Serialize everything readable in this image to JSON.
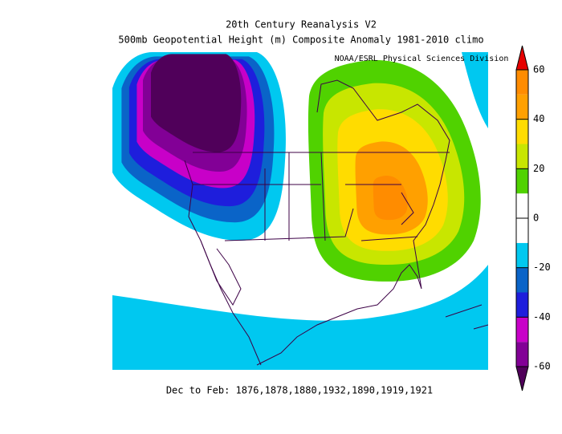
{
  "header": {
    "title": "20th Century Reanalysis V2",
    "subtitle": "500mb Geopotential Height (m) Composite Anomaly 1981-2010 climo",
    "credit": "NOAA/ESRL Physical Sciences Division"
  },
  "footer": "Dec to Feb: 1876,1878,1880,1932,1890,1919,1921",
  "colorbar": {
    "lim": [
      -60,
      60
    ],
    "ticks": [
      60,
      40,
      20,
      0,
      -20,
      -40,
      -60
    ],
    "colors": [
      "#50005a",
      "#820096",
      "#c800c8",
      "#1e1edc",
      "#0a64c8",
      "#00c8f0",
      "#ffffff",
      "#ffffff",
      "#50d200",
      "#c8e600",
      "#ffdc00",
      "#ffa000",
      "#ff8c00",
      "#e60000"
    ]
  }
}
